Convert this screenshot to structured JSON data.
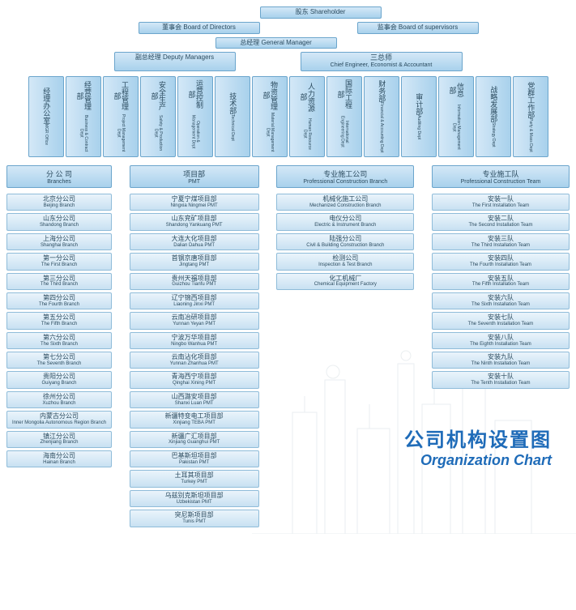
{
  "colors": {
    "box_grad_top": "#d4e8f7",
    "box_grad_bot": "#a8d1ec",
    "border": "#6ba5cc",
    "text": "#2a4a5e",
    "title": "#1e6bb8"
  },
  "top": {
    "shareholder_cn": "股东 Shareholder",
    "board_dir_cn": "董事会 Board of Directors",
    "board_sup_cn": "监事会 Board of supervisors",
    "gm_cn": "总经理 General Manager",
    "deputy_cn": "副总经理 Deputy Managers",
    "chiefs_cn": "三总师",
    "chiefs_en": "Chief Engineer, Economist & Accountant"
  },
  "depts": [
    {
      "cn": "经理办公室",
      "en": "MGR Office"
    },
    {
      "cn": "经营管理部",
      "en": "Business & Contract Dept"
    },
    {
      "cn": "工程管理部",
      "en": "Project Management Dept"
    },
    {
      "cn": "安全生产部",
      "en": "Safety & Production Dept"
    },
    {
      "cn": "运营控制部",
      "en": "Operation & Management Dept"
    },
    {
      "cn": "技术部",
      "en": "Technical Dept"
    },
    {
      "cn": "物资管理部",
      "en": "Material Management Dept"
    },
    {
      "cn": "人力资源部",
      "en": "Human Resource Dept"
    },
    {
      "cn": "国际工程部",
      "en": "International Engineering Dept"
    },
    {
      "cn": "财务部",
      "en": "Financial & Accounting Dept"
    },
    {
      "cn": "审计部",
      "en": "Auditing Dept"
    },
    {
      "cn": "信息部",
      "en": "Information Management Dept"
    },
    {
      "cn": "战略发展部",
      "en": "Strategy Dept"
    },
    {
      "cn": "党群工作部",
      "en": "Party & Mass Dept"
    }
  ],
  "columns": [
    {
      "head_cn": "分 公 司",
      "head_en": "Branches",
      "items": [
        {
          "cn": "北京分公司",
          "en": "Beijing Branch"
        },
        {
          "cn": "山东分公司",
          "en": "Shandong Branch"
        },
        {
          "cn": "上海分公司",
          "en": "Shanghai Branch"
        },
        {
          "cn": "第一分公司",
          "en": "The First Branch"
        },
        {
          "cn": "第三分公司",
          "en": "The Third Branch"
        },
        {
          "cn": "第四分公司",
          "en": "The Fourth Branch"
        },
        {
          "cn": "第五分公司",
          "en": "The Fifth Branch"
        },
        {
          "cn": "第六分公司",
          "en": "The Sixth Branch"
        },
        {
          "cn": "第七分公司",
          "en": "The Seventh Branch"
        },
        {
          "cn": "贵阳分公司",
          "en": "Guiyang Branch"
        },
        {
          "cn": "徐州分公司",
          "en": "Xuzhou Branch"
        },
        {
          "cn": "内蒙古分公司",
          "en": "Inner Mongolia Autonomous Region Branch"
        },
        {
          "cn": "镇江分公司",
          "en": "Zhenjiang Branch"
        },
        {
          "cn": "海南分公司",
          "en": "Hainan Branch"
        }
      ]
    },
    {
      "head_cn": "项目部",
      "head_en": "PMT",
      "items": [
        {
          "cn": "宁夏宁煤项目部",
          "en": "Ningxia Ningmei PMT"
        },
        {
          "cn": "山东兖矿项目部",
          "en": "Shandong Yankuang PMT"
        },
        {
          "cn": "大连大化项目部",
          "en": "Dalian Dahua PMT"
        },
        {
          "cn": "首钢京唐项目部",
          "en": "Jingtang PMT"
        },
        {
          "cn": "贵州天福项目部",
          "en": "Guizhou Tianfu PMT"
        },
        {
          "cn": "辽宁锦西项目部",
          "en": "Liaoning Jinxi PMT"
        },
        {
          "cn": "云南冶研项目部",
          "en": "Yunnan Yeyan PMT"
        },
        {
          "cn": "宁波万华项目部",
          "en": "Ningbo Wanhua PMT"
        },
        {
          "cn": "云南沾化项目部",
          "en": "Yunnan Zhanhua PMT"
        },
        {
          "cn": "青海西宁项目部",
          "en": "Qinghai Xining PMT"
        },
        {
          "cn": "山西潞安项目部",
          "en": "Shanxi Luan PMT"
        },
        {
          "cn": "新疆特变电工项目部",
          "en": "Xinjiang TEBA PMT"
        },
        {
          "cn": "新疆广汇项目部",
          "en": "Xinjiang Guanghui PMT"
        },
        {
          "cn": "巴基斯坦项目部",
          "en": "Pakistan PMT"
        },
        {
          "cn": "土耳其项目部",
          "en": "Turkey PMT"
        },
        {
          "cn": "乌兹别克斯坦项目部",
          "en": "Uzbekistan PMT"
        },
        {
          "cn": "突尼斯项目部",
          "en": "Tunis PMT"
        }
      ]
    },
    {
      "head_cn": "专业施工公司",
      "head_en": "Professional Construction Branch",
      "items": [
        {
          "cn": "机械化施工公司",
          "en": "Mechanized Construction Branch"
        },
        {
          "cn": "电仪分公司",
          "en": "Electric & Instrument Branch"
        },
        {
          "cn": "陆强分公司",
          "en": "Civil & Building Construction Branch"
        },
        {
          "cn": "检测公司",
          "en": "Inspection & Test Branch"
        },
        {
          "cn": "化工机械厂",
          "en": "Chemical Equipment Factory"
        }
      ]
    },
    {
      "head_cn": "专业施工队",
      "head_en": "Professional Construction Team",
      "items": [
        {
          "cn": "安装一队",
          "en": "The First Installation Team"
        },
        {
          "cn": "安装二队",
          "en": "The Second Installation Team"
        },
        {
          "cn": "安装三队",
          "en": "The Third Installation Team"
        },
        {
          "cn": "安装四队",
          "en": "The Fourth Installation Team"
        },
        {
          "cn": "安装五队",
          "en": "The Fifth Installation Team"
        },
        {
          "cn": "安装六队",
          "en": "The Sixth Installation Team"
        },
        {
          "cn": "安装七队",
          "en": "The Seventh Installation Team"
        },
        {
          "cn": "安装八队",
          "en": "The Eighth Installation Team"
        },
        {
          "cn": "安装九队",
          "en": "The Ninth Installation Team"
        },
        {
          "cn": "安装十队",
          "en": "The Tenth Installation Team"
        }
      ]
    }
  ],
  "title": {
    "cn": "公司机构设置图",
    "en": "Organization Chart"
  }
}
